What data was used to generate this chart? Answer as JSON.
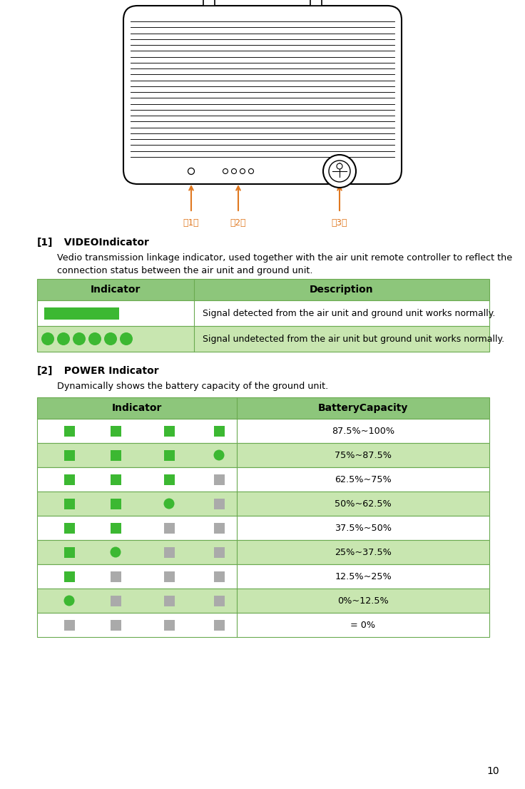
{
  "page_number": "10",
  "bg_color": "#ffffff",
  "table1_header_bg": "#8dc67b",
  "table1_row1_bg": "#ffffff",
  "table1_row2_bg": "#c8e6b0",
  "table2_header_bg": "#8dc67b",
  "table2_odd_bg": "#ffffff",
  "table2_even_bg": "#c8e6b0",
  "green_solid": "#3cb832",
  "gray_solid": "#aaaaaa",
  "border_color": "#6aaa50",
  "orange_color": "#e07820",
  "device_line_color": "#000000",
  "page_number_text": "10",
  "section1_label": "[1]",
  "section1_title": "  VIDEO​Indicator",
  "section1_desc1": "Vedio transmission linkage indicator, used together with the air unit remote controller to reflect the",
  "section1_desc2": "connection status between the air unit and ground unit.",
  "table1_col1": "Indicator",
  "table1_col2": "Description",
  "table1_row1_desc": "Signal detected from the air unit and ground unit works normally.",
  "table1_row2_desc": "Signal undetected from the air unit but ground unit works normally.",
  "section2_label": "[2]",
  "section2_title": "  POWER Indicator",
  "section2_desc": "Dynamically shows the battery capacity of the ground unit.",
  "table2_col1": "Indicator",
  "table2_col2": "BatteryCapacity",
  "battery_rows": [
    {
      "capacity": "87.5%~100%",
      "squares": [
        "green",
        "green",
        "green",
        "green"
      ]
    },
    {
      "capacity": "75%~87.5%",
      "squares": [
        "green",
        "green",
        "green",
        "circle_green"
      ]
    },
    {
      "capacity": "62.5%~75%",
      "squares": [
        "green",
        "green",
        "green",
        "gray"
      ]
    },
    {
      "capacity": "50%~62.5%",
      "squares": [
        "green",
        "green",
        "circle_green",
        "gray"
      ]
    },
    {
      "capacity": "37.5%~50%",
      "squares": [
        "green",
        "green",
        "gray",
        "gray"
      ]
    },
    {
      "capacity": "25%~37.5%",
      "squares": [
        "green",
        "circle_green",
        "gray",
        "gray"
      ]
    },
    {
      "capacity": "12.5%~25%",
      "squares": [
        "green",
        "gray",
        "gray",
        "gray"
      ]
    },
    {
      "capacity": "0%~12.5%",
      "squares": [
        "circle_green",
        "gray",
        "gray",
        "gray"
      ]
    },
    {
      "capacity": "= 0%",
      "squares": [
        "gray",
        "gray",
        "gray",
        "gray"
      ]
    }
  ]
}
